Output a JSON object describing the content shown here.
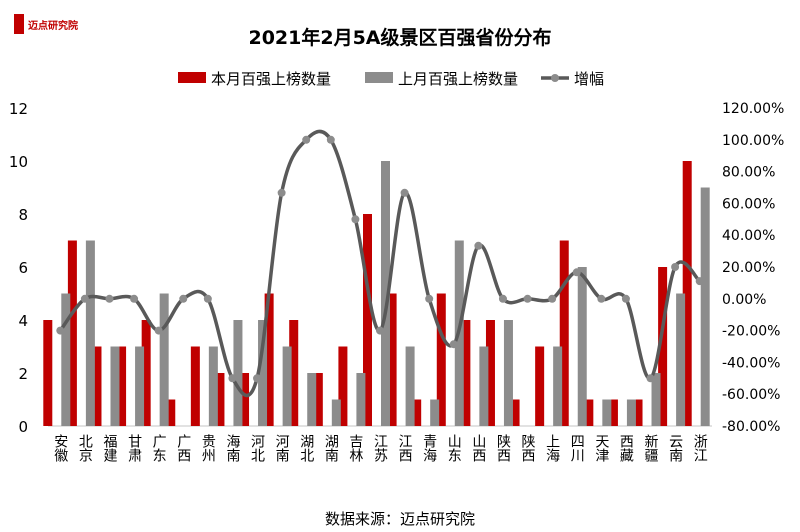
{
  "logo": {
    "text": "迈点研究院"
  },
  "chart_data": {
    "type": "bar",
    "title": "2021年2月5A级景区百强省份分布",
    "source": "数据来源：迈点研究院",
    "legend_position": "top",
    "categories": [
      "安徽",
      "北京",
      "福建",
      "甘肃",
      "广东",
      "广西",
      "贵州",
      "海南",
      "河北",
      "河南",
      "湖北",
      "湖南",
      "吉林",
      "江苏",
      "江西",
      "青海",
      "山东",
      "山西",
      "陕西",
      "陕西",
      "上海",
      "四川",
      "天津",
      "西藏",
      "新疆",
      "云南",
      "浙江"
    ],
    "series": [
      {
        "name": "本月百强上榜数量",
        "type": "bar",
        "axis": "left",
        "color": "#c00000",
        "values": [
          4,
          7,
          3,
          3,
          4,
          1,
          3,
          2,
          2,
          5,
          4,
          2,
          3,
          8,
          5,
          1,
          5,
          4,
          4,
          1,
          3,
          7,
          1,
          1,
          1,
          6,
          10
        ]
      },
      {
        "name": "上月百强上榜数量",
        "type": "bar",
        "axis": "left",
        "color": "#8c8c8c",
        "values": [
          5,
          7,
          3,
          3,
          5,
          0,
          3,
          4,
          4,
          3,
          2,
          1,
          2,
          10,
          3,
          1,
          7,
          3,
          4,
          0,
          3,
          6,
          1,
          1,
          2,
          5,
          9
        ]
      },
      {
        "name": "增幅",
        "type": "line",
        "axis": "right",
        "color": "#595959",
        "values": [
          -20,
          0,
          0,
          0,
          -20,
          0,
          0,
          -50,
          -50,
          66.67,
          100,
          100,
          50,
          -20,
          66.67,
          0,
          -28.57,
          33.33,
          0,
          0,
          0,
          16.67,
          0,
          0,
          -50,
          20,
          11.11
        ]
      }
    ],
    "y_left": {
      "min": 0,
      "max": 12,
      "ticks": [
        "0",
        "2",
        "4",
        "6",
        "8",
        "10",
        "12"
      ]
    },
    "y_right": {
      "min": -80,
      "max": 120,
      "ticks": [
        "-80.00%",
        "-60.00%",
        "-40.00%",
        "-20.00%",
        "0.00%",
        "20.00%",
        "40.00%",
        "60.00%",
        "80.00%",
        "100.00%",
        "120.00%"
      ]
    }
  }
}
